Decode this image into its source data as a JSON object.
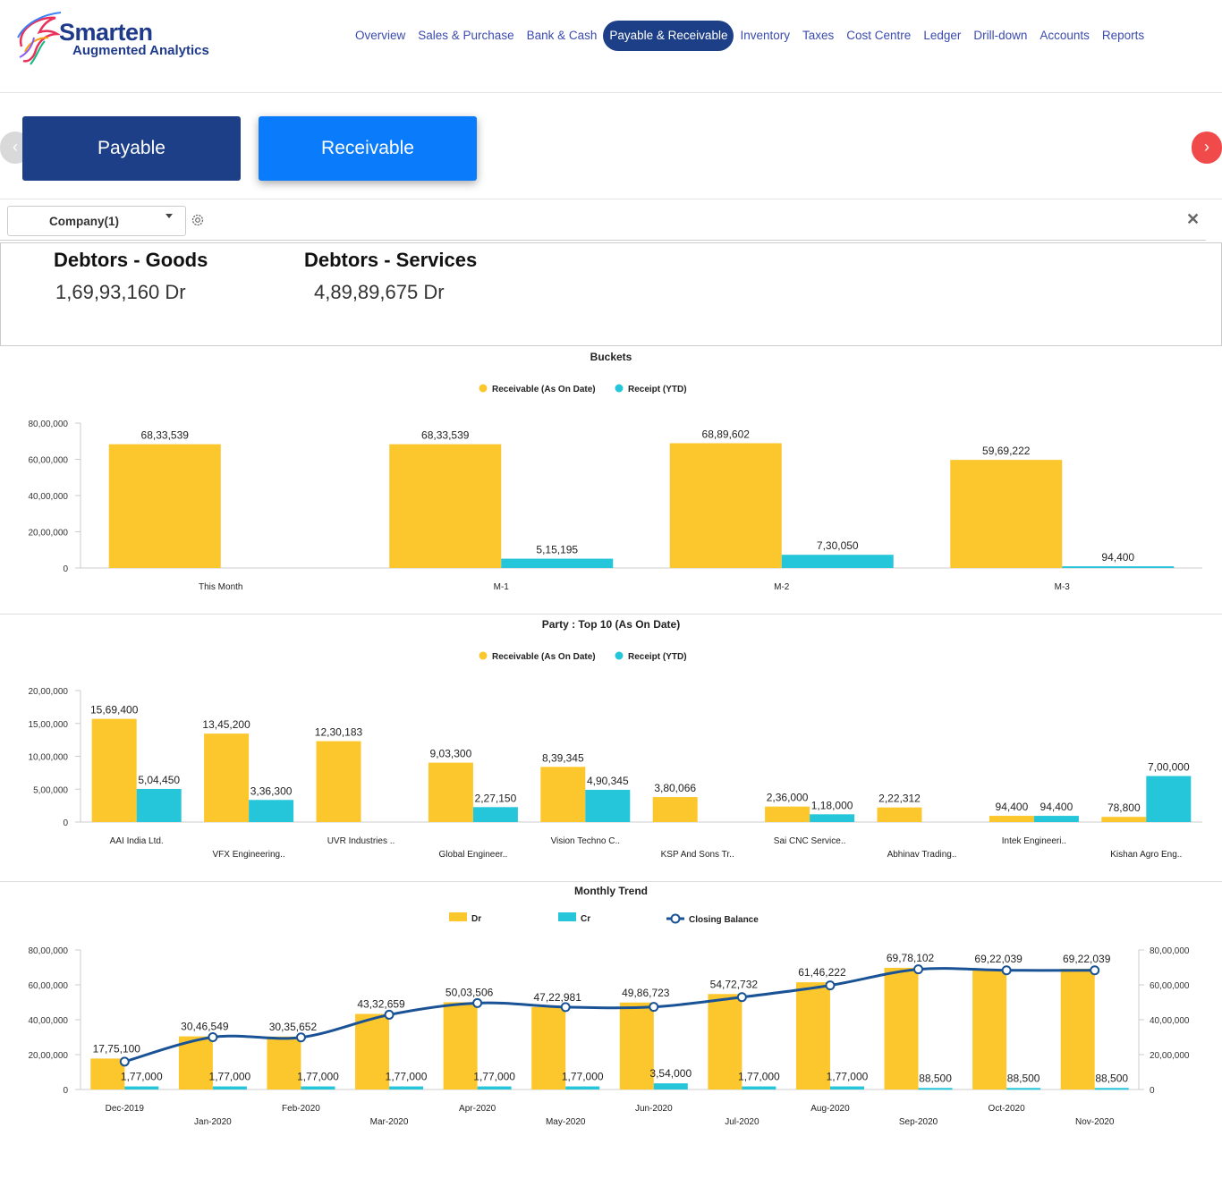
{
  "logo": {
    "name": "Smarten",
    "tagline": "Augmented Analytics"
  },
  "nav": {
    "items": [
      "Overview",
      "Sales & Purchase",
      "Bank & Cash",
      "Payable & Receivable",
      "Inventory",
      "Taxes",
      "Cost Centre",
      "Ledger",
      "Drill-down",
      "Accounts",
      "Reports"
    ],
    "active_index": 3
  },
  "carousel": {
    "prev": "‹",
    "next": "›"
  },
  "tabs": {
    "payable": "Payable",
    "receivable": "Receivable"
  },
  "filter": {
    "company": "Company(1)"
  },
  "kpis": [
    {
      "title": "Debtors - Goods",
      "value": "1,69,93,160 Dr"
    },
    {
      "title": "Debtors - Services",
      "value": "4,89,89,675 Dr"
    }
  ],
  "colors": {
    "receivable": "#fcc72c",
    "receipt": "#26c6da",
    "closing": "#1a5296"
  },
  "chart_data": [
    {
      "type": "bar",
      "title": "Buckets",
      "categories": [
        "This Month",
        "M-1",
        "M-2",
        "M-3"
      ],
      "series": [
        {
          "name": "Receivable (As On Date)",
          "values": [
            6833539,
            6833539,
            6889602,
            5969222
          ],
          "labels": [
            "68,33,539",
            "68,33,539",
            "68,89,602",
            "59,69,222"
          ]
        },
        {
          "name": "Receipt (YTD)",
          "values": [
            0,
            515195,
            730050,
            94400
          ],
          "labels": [
            "",
            "5,15,195",
            "7,30,050",
            "94,400"
          ]
        }
      ],
      "yticks": [
        "0",
        "20,00,000",
        "40,00,000",
        "60,00,000",
        "80,00,000"
      ],
      "ylim": [
        0,
        8000000
      ],
      "legend": "top-center"
    },
    {
      "type": "bar",
      "title": "Party : Top 10 (As On Date)",
      "categories": [
        "AAI India Ltd.",
        "VFX Engineering..",
        "UVR Industries ..",
        "Global Engineer..",
        "Vision Techno C..",
        "KSP And Sons Tr..",
        "Sai CNC Service..",
        "Abhinav Trading..",
        "Intek Engineeri..",
        "Kishan Agro Eng.."
      ],
      "series": [
        {
          "name": "Receivable (As On Date)",
          "values": [
            1569400,
            1345200,
            1230183,
            903300,
            839345,
            380066,
            236000,
            222312,
            94400,
            78800
          ],
          "labels": [
            "15,69,400",
            "13,45,200",
            "12,30,183",
            "9,03,300",
            "8,39,345",
            "3,80,066",
            "2,36,000",
            "2,22,312",
            "94,400",
            "78,800"
          ]
        },
        {
          "name": "Receipt (YTD)",
          "values": [
            504450,
            336300,
            0,
            227150,
            490345,
            0,
            118000,
            0,
            94400,
            700000
          ],
          "labels": [
            "5,04,450",
            "3,36,300",
            "",
            "2,27,150",
            "4,90,345",
            "",
            "1,18,000",
            "",
            "94,400",
            "7,00,000"
          ]
        }
      ],
      "yticks": [
        "0",
        "5,00,000",
        "10,00,000",
        "15,00,000",
        "20,00,000"
      ],
      "ylim": [
        0,
        2000000
      ],
      "legend": "top-center"
    },
    {
      "type": "bar",
      "title": "Monthly Trend",
      "categories": [
        "Dec-2019",
        "Jan-2020",
        "Feb-2020",
        "Mar-2020",
        "Apr-2020",
        "May-2020",
        "Jun-2020",
        "Jul-2020",
        "Aug-2020",
        "Sep-2020",
        "Oct-2020",
        "Nov-2020"
      ],
      "series": [
        {
          "name": "Dr",
          "values": [
            1775100,
            3046549,
            3035652,
            4332659,
            5003506,
            4722981,
            4986723,
            5472732,
            6146222,
            6978102,
            6922039,
            6922039
          ],
          "labels": [
            "17,75,100",
            "30,46,549",
            "30,35,652",
            "43,32,659",
            "50,03,506",
            "47,22,981",
            "49,86,723",
            "54,72,732",
            "61,46,222",
            "69,78,102",
            "69,22,039",
            "69,22,039"
          ]
        },
        {
          "name": "Cr",
          "values": [
            177000,
            177000,
            177000,
            177000,
            177000,
            177000,
            354000,
            177000,
            177000,
            88500,
            88500,
            88500
          ],
          "labels": [
            "1,77,000",
            "1,77,000",
            "1,77,000",
            "1,77,000",
            "1,77,000",
            "1,77,000",
            "3,54,000",
            "1,77,000",
            "1,77,000",
            "88,500",
            "88,500",
            "88,500"
          ]
        },
        {
          "name": "Closing Balance",
          "values": [
            1598100,
            2999649,
            2988752,
            4285759,
            4956606,
            4722981,
            4737723,
            5295732,
            5969222,
            6889602,
            6833539,
            6833539
          ]
        }
      ],
      "yticks": [
        "0",
        "20,00,000",
        "40,00,000",
        "60,00,000",
        "80,00,000"
      ],
      "ylim": [
        0,
        8000000
      ],
      "legend": "top-center"
    }
  ]
}
